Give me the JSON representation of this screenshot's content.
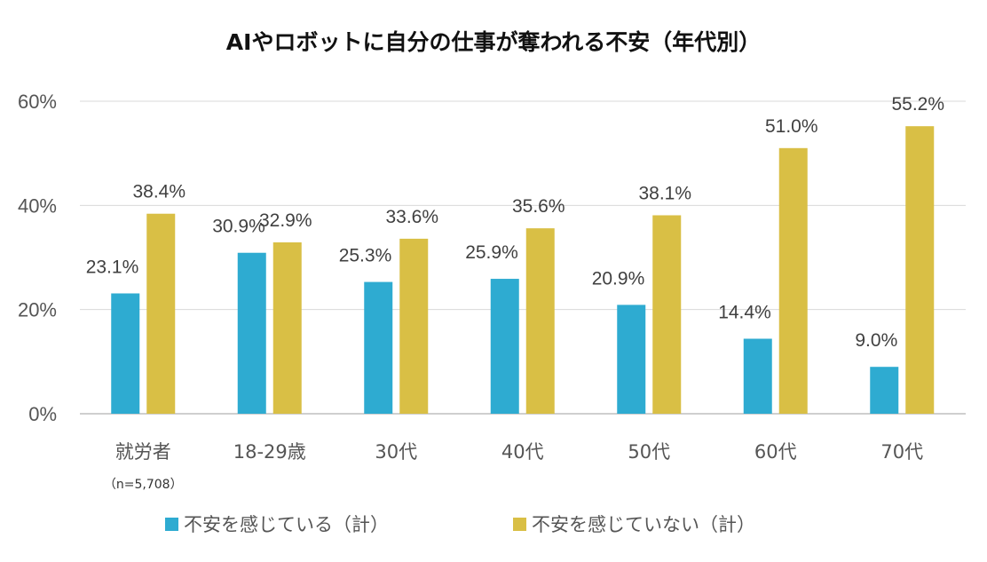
{
  "chart_data": {
    "type": "bar",
    "title": "AIやロボットに自分の仕事が奪われる不安（年代別）",
    "categories": [
      "就労者",
      "18-29歳",
      "30代",
      "40代",
      "50代",
      "60代",
      "70代"
    ],
    "category_note": "（n=5,708）",
    "series": [
      {
        "name": "不安を感じている（計）",
        "color": "#2eabd1",
        "values": [
          23.1,
          30.9,
          25.3,
          25.9,
          20.9,
          14.4,
          9.0
        ],
        "labels": [
          "23.1%",
          "30.9%",
          "25.3%",
          "25.9%",
          "20.9%",
          "14.4%",
          "9.0%"
        ]
      },
      {
        "name": "不安を感じていない（計）",
        "color": "#d9bf45",
        "values": [
          38.4,
          32.9,
          33.6,
          35.6,
          38.1,
          51.0,
          55.2
        ],
        "labels": [
          "38.4%",
          "32.9%",
          "33.6%",
          "35.6%",
          "38.1%",
          "51.0%",
          "55.2%"
        ]
      }
    ],
    "ylim": [
      0,
      60
    ],
    "yticks": [
      0,
      20,
      40,
      60
    ],
    "ytick_labels": [
      "0%",
      "20%",
      "40%",
      "60%"
    ],
    "xlabel": "",
    "ylabel": "",
    "grid": true,
    "legend_position": "bottom-center"
  }
}
